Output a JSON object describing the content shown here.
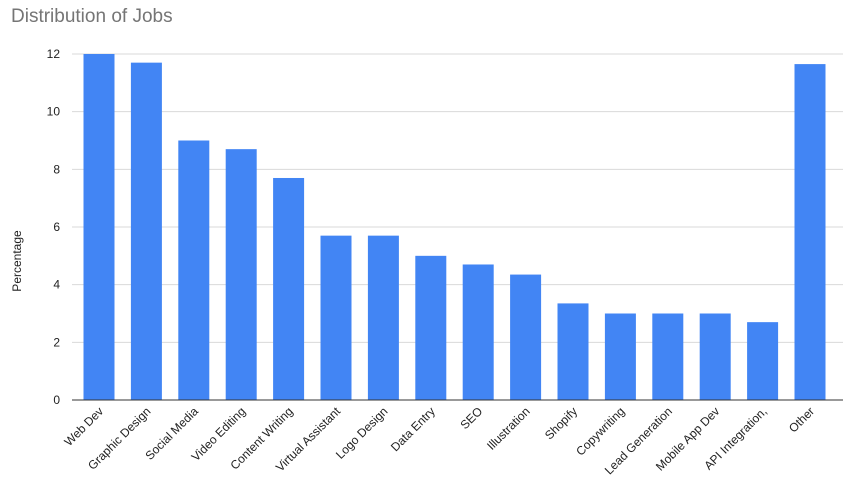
{
  "chart_data": {
    "type": "bar",
    "title": "Distribution of Jobs",
    "xlabel": "",
    "ylabel": "Percentage",
    "categories": [
      "Web Dev",
      "Graphic Design",
      "Social Media",
      "Video Editing",
      "Content Writing",
      "Virtual Assistant",
      "Logo Design",
      "Data Entry",
      "SEO",
      "Illustration",
      "Shopify",
      "Copywriting",
      "Lead Generation",
      "Mobile App Dev",
      "API Integration,",
      "Other"
    ],
    "values": [
      12.0,
      11.7,
      9.0,
      8.7,
      7.7,
      5.7,
      5.7,
      5.0,
      4.7,
      4.35,
      3.35,
      3.0,
      3.0,
      3.0,
      2.7,
      11.65
    ],
    "ylim": [
      0,
      12
    ],
    "yticks": [
      0,
      2,
      4,
      6,
      8,
      10,
      12
    ],
    "grid": true,
    "legend": "none",
    "bar_color": "#4285f4",
    "grid_color": "#d9d9d9",
    "axis_color": "#333333"
  }
}
